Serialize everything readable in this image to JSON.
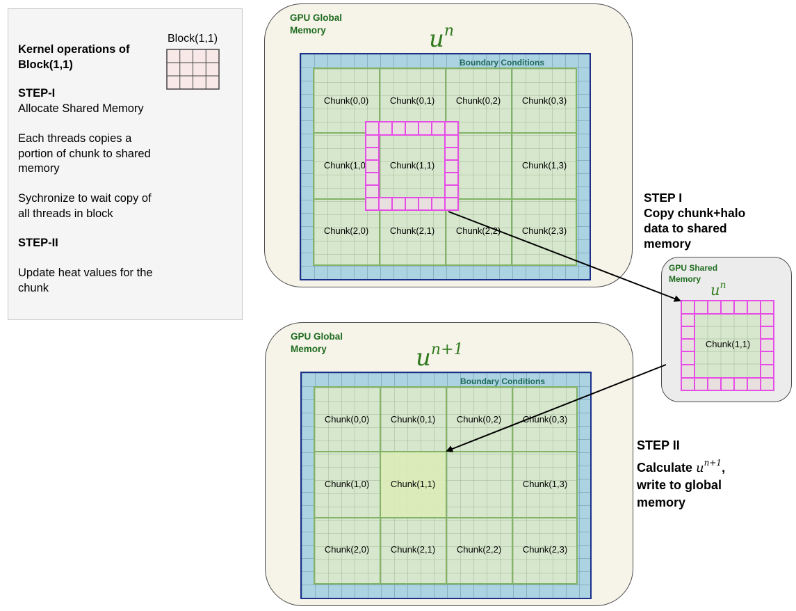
{
  "note_panel": {
    "heading": [
      "Kernel operations of",
      "Block(1,1)"
    ],
    "step1_title": "STEP-I",
    "step1_line": "Allocate Shared Memory",
    "copy_text": [
      "Each threads copies a",
      "portion of chunk to shared",
      "memory"
    ],
    "sync_text": [
      "Sychronize to wait copy of",
      "all threads in block"
    ],
    "step2_title": "STEP-II",
    "update_text": [
      "Update heat values for the",
      "chunk"
    ],
    "block_label": "Block(1,1)"
  },
  "top_region": {
    "label": [
      "GPU Global",
      "Memory"
    ],
    "symbol": "u",
    "superscript": "n",
    "boundary_label": "Boundary Conditions",
    "chunks": [
      [
        "Chunk(0,0)",
        "Chunk(0,1)",
        "Chunk(0,2)",
        "Chunk(0,3)"
      ],
      [
        "Chunk(1,0)",
        "Chunk(1,1)",
        "",
        "Chunk(1,3)"
      ],
      [
        "Chunk(2,0)",
        "Chunk(2,1)",
        "Chunk(2,2)",
        "Chunk(2,3)"
      ]
    ]
  },
  "bottom_region": {
    "label": [
      "GPU Global",
      "Memory"
    ],
    "symbol": "u",
    "superscript": "n+1",
    "boundary_label": "Boundary Conditions",
    "chunks": [
      [
        "Chunk(0,0)",
        "Chunk(0,1)",
        "Chunk(0,2)",
        "Chunk(0,3)"
      ],
      [
        "Chunk(1,0)",
        "Chunk(1,1)",
        "",
        "Chunk(1,3)"
      ],
      [
        "Chunk(2,0)",
        "Chunk(2,1)",
        "Chunk(2,2)",
        "Chunk(2,3)"
      ]
    ]
  },
  "shared_region": {
    "label": [
      "GPU Shared",
      "Memory"
    ],
    "symbol": "u",
    "superscript": "n",
    "chunk_label": "Chunk(1,1)"
  },
  "step1": {
    "lines": [
      "STEP I",
      "Copy chunk+halo",
      "data to shared",
      "memory"
    ]
  },
  "step2": {
    "title": "STEP II",
    "calc_prefix": "Calculate ",
    "symbol": "u",
    "superscript": "n+1",
    "calc_suffix": ",",
    "rest": [
      "write to global",
      "memory"
    ]
  },
  "colors": {
    "boundary_blue": "#acd3e2",
    "domain_green": "#d7e7cd",
    "halo_pink": "#e64ce6",
    "label_green": "#1e6b1e"
  }
}
